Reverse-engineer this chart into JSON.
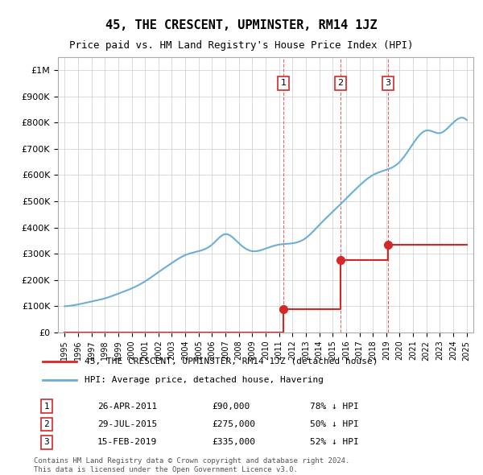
{
  "title": "45, THE CRESCENT, UPMINSTER, RM14 1JZ",
  "subtitle": "Price paid vs. HM Land Registry's House Price Index (HPI)",
  "hpi_label": "HPI: Average price, detached house, Havering",
  "price_label": "45, THE CRESCENT, UPMINSTER, RM14 1JZ (detached house)",
  "transactions": [
    {
      "num": 1,
      "date": "26-APR-2011",
      "price": 90000,
      "x": 2011.32,
      "hpi_pct": "78% ↓ HPI"
    },
    {
      "num": 2,
      "date": "29-JUL-2015",
      "price": 275000,
      "x": 2015.57,
      "hpi_pct": "50% ↓ HPI"
    },
    {
      "num": 3,
      "date": "15-FEB-2019",
      "price": 335000,
      "x": 2019.12,
      "hpi_pct": "52% ↓ HPI"
    }
  ],
  "footer": [
    "Contains HM Land Registry data © Crown copyright and database right 2024.",
    "This data is licensed under the Open Government Licence v3.0."
  ],
  "ylim": [
    0,
    1050000
  ],
  "xlim": [
    1994.5,
    2025.5
  ],
  "hpi_color": "#6baed6",
  "price_color": "#d62728",
  "vline_color": "#d62728",
  "bg_color": "#ffffff",
  "grid_color": "#cccccc"
}
